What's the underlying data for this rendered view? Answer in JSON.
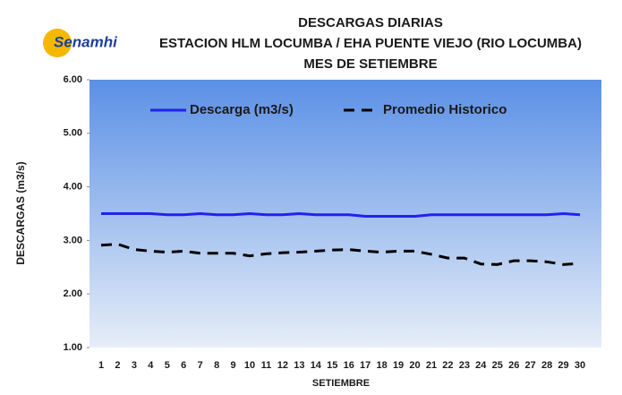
{
  "chart_data": {
    "type": "line",
    "logo": "Senamhi",
    "title": [
      "DESCARGAS DIARIAS",
      "ESTACION  HLM LOCUMBA / EHA PUENTE  VIEJO (RIO LOCUMBA)",
      "MES DE  SETIEMBRE"
    ],
    "x_label": "SETIEMBRE",
    "y_label": "DESCARGAS (m3/s)",
    "categories": [
      "1",
      "2",
      "3",
      "4",
      "5",
      "6",
      "7",
      "8",
      "9",
      "10",
      "11",
      "12",
      "13",
      "14",
      "15",
      "16",
      "17",
      "18",
      "19",
      "20",
      "21",
      "22",
      "23",
      "24",
      "25",
      "26",
      "27",
      "28",
      "29",
      "30"
    ],
    "series": [
      {
        "name": "Descarga (m3/s)",
        "color": "#2222ee",
        "dashed": false,
        "values": [
          3.5,
          3.5,
          3.5,
          3.5,
          3.48,
          3.48,
          3.5,
          3.48,
          3.48,
          3.5,
          3.48,
          3.48,
          3.5,
          3.48,
          3.48,
          3.48,
          3.45,
          3.45,
          3.45,
          3.45,
          3.48,
          3.48,
          3.48,
          3.48,
          3.48,
          3.48,
          3.48,
          3.48,
          3.5,
          3.48
        ]
      },
      {
        "name": "Promedio Historico",
        "color": "#000000",
        "dashed": true,
        "values": [
          2.91,
          2.93,
          2.83,
          2.8,
          2.78,
          2.8,
          2.76,
          2.76,
          2.76,
          2.71,
          2.75,
          2.77,
          2.78,
          2.8,
          2.82,
          2.83,
          2.8,
          2.78,
          2.8,
          2.8,
          2.74,
          2.67,
          2.67,
          2.56,
          2.55,
          2.62,
          2.62,
          2.6,
          2.55,
          2.57
        ]
      }
    ],
    "ylim": [
      1,
      6
    ],
    "yticks": [
      {
        "value": 1,
        "label": "1.00"
      },
      {
        "value": 2,
        "label": "2.00"
      },
      {
        "value": 3,
        "label": "3.00"
      },
      {
        "value": 4,
        "label": "4.00"
      },
      {
        "value": 5,
        "label": "5.00"
      },
      {
        "value": 6,
        "label": "6.00"
      }
    ],
    "legend": "top"
  }
}
